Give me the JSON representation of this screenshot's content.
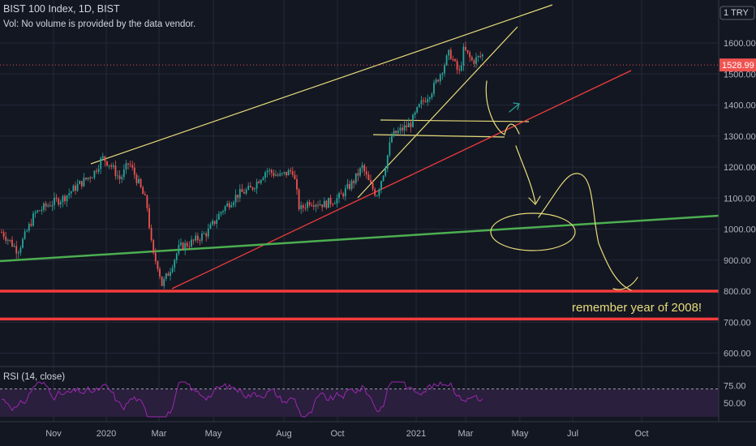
{
  "header": {
    "title": "BIST 100 Index, 1D, BIST",
    "volume_note": "Vol: No volume is provided by the data vendor."
  },
  "currency": "1 TRY",
  "rsi_label": "RSI (14, close)",
  "annotation": "remember year of 2008!",
  "colors": {
    "background": "#131722",
    "grid": "#242838",
    "candle_up": "#26a69a",
    "candle_down": "#ef5350",
    "yellow_line": "#e8dc7a",
    "red_line": "#f23c3c",
    "green_line": "#4caf50",
    "rsi_line": "#9c27b0"
  },
  "chart_data": {
    "type": "candlestick",
    "title": "BIST 100 Index, 1D, BIST",
    "ylim": [
      560,
      1700
    ],
    "y_ticks": [
      600,
      700,
      800,
      900,
      1000,
      1100,
      1200,
      1300,
      1400,
      1500,
      1600
    ],
    "x_ticks": [
      "Nov",
      "2020",
      "Mar",
      "May",
      "Aug",
      "Oct",
      "2021",
      "Mar",
      "May",
      "Jul",
      "Oct"
    ],
    "current_price": "1528.99",
    "price_path": [
      [
        "2019-10-01",
        990
      ],
      [
        "2019-10-10",
        960
      ],
      [
        "2019-10-18",
        930
      ],
      [
        "2019-10-25",
        975
      ],
      [
        "2019-11-05",
        1050
      ],
      [
        "2019-11-20",
        1080
      ],
      [
        "2019-12-05",
        1100
      ],
      [
        "2019-12-20",
        1140
      ],
      [
        "2020-01-06",
        1180
      ],
      [
        "2020-01-15",
        1230
      ],
      [
        "2020-01-23",
        1210
      ],
      [
        "2020-02-03",
        1160
      ],
      [
        "2020-02-12",
        1215
      ],
      [
        "2020-02-22",
        1150
      ],
      [
        "2020-03-02",
        1080
      ],
      [
        "2020-03-08",
        920
      ],
      [
        "2020-03-14",
        880
      ],
      [
        "2020-03-18",
        820
      ],
      [
        "2020-03-25",
        860
      ],
      [
        "2020-04-05",
        940
      ],
      [
        "2020-04-20",
        960
      ],
      [
        "2020-05-05",
        990
      ],
      [
        "2020-05-20",
        1060
      ],
      [
        "2020-06-05",
        1110
      ],
      [
        "2020-06-20",
        1130
      ],
      [
        "2020-07-06",
        1190
      ],
      [
        "2020-07-20",
        1170
      ],
      [
        "2020-08-03",
        1190
      ],
      [
        "2020-08-10",
        1060
      ],
      [
        "2020-08-20",
        1090
      ],
      [
        "2020-09-05",
        1080
      ],
      [
        "2020-09-20",
        1100
      ],
      [
        "2020-10-05",
        1150
      ],
      [
        "2020-10-15",
        1200
      ],
      [
        "2020-10-22",
        1150
      ],
      [
        "2020-10-30",
        1110
      ],
      [
        "2020-11-08",
        1200
      ],
      [
        "2020-11-15",
        1300
      ],
      [
        "2020-11-25",
        1320
      ],
      [
        "2020-12-05",
        1340
      ],
      [
        "2020-12-15",
        1400
      ],
      [
        "2020-12-28",
        1450
      ],
      [
        "2021-01-05",
        1500
      ],
      [
        "2021-01-15",
        1570
      ],
      [
        "2021-01-25",
        1500
      ],
      [
        "2021-01-30",
        1580
      ],
      [
        "2021-02-08",
        1540
      ],
      [
        "2021-02-18",
        1560
      ],
      [
        "2021-02-25",
        1570
      ],
      [
        "2021-03-02",
        1470
      ],
      [
        "2021-03-08",
        1540
      ],
      [
        "2021-03-15",
        1570
      ],
      [
        "2021-03-20",
        1590
      ],
      [
        "2021-03-26",
        1529
      ]
    ],
    "horizontal_levels": [
      {
        "color": "red",
        "value": 800
      },
      {
        "color": "red",
        "value": 710
      }
    ],
    "rsi": {
      "label": "RSI (14, close)",
      "levels": [
        75,
        50
      ],
      "upper_band": 70,
      "lower_band": 30
    }
  }
}
